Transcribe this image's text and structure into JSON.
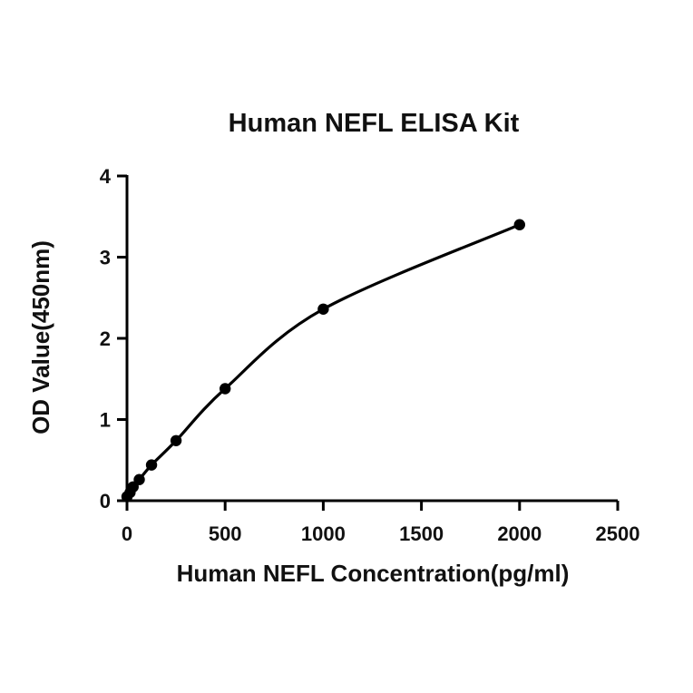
{
  "chart_data": {
    "type": "scatter",
    "title": "Human NEFL ELISA Kit",
    "xlabel": "Human NEFL Concentration(pg/ml)",
    "ylabel": "OD Value(450nm)",
    "xlim": [
      0,
      2500
    ],
    "ylim": [
      0,
      4
    ],
    "x_ticks": [
      0,
      500,
      1000,
      1500,
      2000,
      2500
    ],
    "y_ticks": [
      0,
      1,
      2,
      3,
      4
    ],
    "grid": false,
    "legend": "none",
    "series": [
      {
        "points": [
          {
            "x": 0,
            "y": 0.05
          },
          {
            "x": 15.6,
            "y": 0.1
          },
          {
            "x": 31.25,
            "y": 0.17
          },
          {
            "x": 62.5,
            "y": 0.26
          },
          {
            "x": 125,
            "y": 0.44
          },
          {
            "x": 250,
            "y": 0.74
          },
          {
            "x": 500,
            "y": 1.38
          },
          {
            "x": 1000,
            "y": 2.36
          },
          {
            "x": 2000,
            "y": 3.4
          }
        ],
        "fit_curve": true
      }
    ],
    "colors": {
      "points": "#000000",
      "curve": "#000000",
      "axes": "#000000"
    }
  }
}
